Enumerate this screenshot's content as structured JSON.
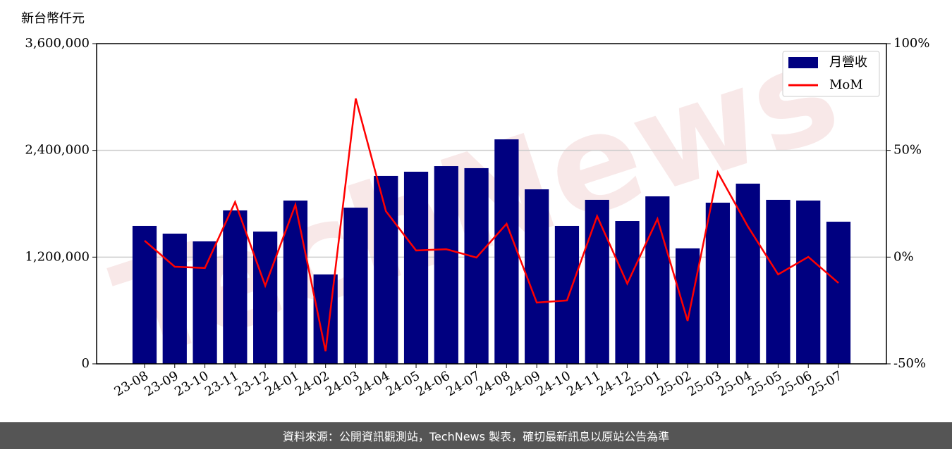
{
  "chart_data": {
    "type": "bar_line",
    "y_label": "新台幣仟元",
    "watermark": "TechNews",
    "categories": [
      "23-08",
      "23-09",
      "23-10",
      "23-11",
      "23-12",
      "24-01",
      "24-02",
      "24-03",
      "24-04",
      "24-05",
      "24-06",
      "24-07",
      "24-08",
      "24-09",
      "24-10",
      "24-11",
      "24-12",
      "25-01",
      "25-02",
      "25-03",
      "25-04",
      "25-05",
      "25-06",
      "25-07"
    ],
    "series": [
      {
        "name": "月營收",
        "type": "bar",
        "color": "#000080",
        "values": [
          1551000,
          1464000,
          1377000,
          1725000,
          1487000,
          1836000,
          1005000,
          1756000,
          2113000,
          2160000,
          2223000,
          2200000,
          2524000,
          1962000,
          1551000,
          1844000,
          1606000,
          1883000,
          1298000,
          1812000,
          2026000,
          1844000,
          1836000,
          1598000
        ]
      },
      {
        "name": "MoM",
        "type": "line",
        "axis": "y2",
        "color": "#ff0000",
        "values": [
          7.7,
          -4.5,
          -5.1,
          25.8,
          -13.4,
          24.5,
          -44.1,
          74.3,
          21.5,
          3.1,
          3.7,
          -0.2,
          15.6,
          -21.3,
          -20.3,
          19.2,
          -12.4,
          17.9,
          -29.9,
          39.7,
          14.3,
          -8.1,
          0.1,
          -12.1
        ]
      }
    ],
    "ylim": [
      0,
      3600000
    ],
    "yticks": [
      0,
      {
        "value": 1200000,
        "label": "1,200,000"
      },
      {
        "value": 2400000,
        "label": "2,400,000"
      },
      {
        "value": 3600000,
        "label": "3,600,000"
      }
    ],
    "y2lim": [
      -50,
      100
    ],
    "y2ticks": [
      {
        "value": -50,
        "label": "-50%"
      },
      {
        "value": 0,
        "label": "0%"
      },
      {
        "value": 50,
        "label": "50%"
      },
      {
        "value": 100,
        "label": "100%"
      }
    ],
    "grid": true,
    "legend": "upper right"
  },
  "footer": "資料來源：公開資訊觀測站，TechNews 製表，確切最新訊息以原站公告為準"
}
